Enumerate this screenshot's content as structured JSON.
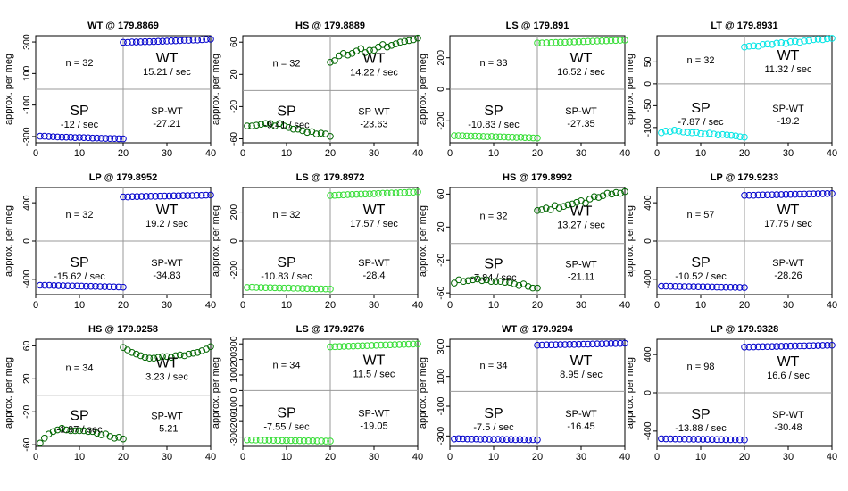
{
  "chart_data": {
    "type": "scatter",
    "layout": {
      "rows": 3,
      "cols": 4
    },
    "shared": {
      "ylabel": "approx. per meg",
      "xlim": [
        0,
        40
      ],
      "xticks": [
        0,
        10,
        20,
        30,
        40
      ],
      "label_sp": "SP",
      "label_wt": "WT",
      "label_spwt": "SP-WT",
      "per_sec": " / sec"
    },
    "panels": [
      {
        "title": "WT @ 179.8869",
        "color": "#0000cc",
        "ylim": [
          -340,
          340
        ],
        "yticks": [
          -300,
          -100,
          100,
          300
        ],
        "n_text": "n = 32",
        "wt_rate": "15.21 / sec",
        "sp_rate": "-12 / sec",
        "diff": "-27.21",
        "sp_points": [
          -298,
          -298,
          -300,
          -301,
          -303,
          -304,
          -304,
          -305,
          -307,
          -306,
          -307,
          -308,
          -310,
          -310,
          -311,
          -312,
          -313,
          -313,
          -314,
          -315
        ],
        "wt_points": [
          298,
          297,
          300,
          300,
          301,
          302,
          302,
          303,
          304,
          305,
          306,
          307,
          308,
          309,
          311,
          311,
          313,
          313,
          315,
          317,
          318
        ]
      },
      {
        "title": "HS @ 179.8889",
        "color": "#006600",
        "ylim": [
          -65,
          68
        ],
        "yticks": [
          -60,
          -20,
          20,
          60
        ],
        "n_text": "n = 32",
        "wt_rate": "14.22 / sec",
        "sp_rate": "-9.41 / sec",
        "diff": "-23.63",
        "sp_points": [
          -44,
          -44,
          -43,
          -42,
          -41,
          -41,
          -44,
          -41,
          -44,
          -46,
          -48,
          -48,
          -50,
          -52,
          -51,
          -54,
          -53,
          -54,
          -57
        ],
        "wt_points": [
          35,
          37,
          43,
          46,
          44,
          46,
          49,
          52,
          47,
          50,
          50,
          54,
          57,
          54,
          56,
          58,
          60,
          61,
          62,
          63,
          65
        ]
      },
      {
        "title": "LS @ 179.891",
        "color": "#33dd33",
        "ylim": [
          -340,
          340
        ],
        "yticks": [
          -200,
          0,
          200
        ],
        "n_text": "n = 33",
        "wt_rate": "16.52 / sec",
        "sp_rate": "-10.83 / sec",
        "diff": "-27.35",
        "sp_points": [
          -295,
          -295,
          -296,
          -297,
          -298,
          -298,
          -299,
          -300,
          -301,
          -300,
          -302,
          -302,
          -303,
          -304,
          -305,
          -306,
          -305,
          -307,
          -307,
          -309,
          -310
        ],
        "wt_points": [
          294,
          294,
          295,
          296,
          297,
          298,
          298,
          300,
          301,
          302,
          303,
          304,
          305,
          306,
          307,
          308,
          309,
          310,
          311,
          312
        ]
      },
      {
        "title": "LT @ 179.8931",
        "color": "#00e5e5",
        "ylim": [
          -135,
          110
        ],
        "yticks": [
          -100,
          -50,
          0,
          50
        ],
        "n_text": "n = 32",
        "wt_rate": "11.32 / sec",
        "sp_rate": "-7.87 / sec",
        "diff": "-19.2",
        "sp_points": [
          -112,
          -108,
          -109,
          -106,
          -108,
          -110,
          -111,
          -112,
          -111,
          -114,
          -115,
          -113,
          -115,
          -117,
          -116,
          -117,
          -118,
          -119,
          -121,
          -122
        ],
        "wt_points": [
          84,
          86,
          87,
          86,
          90,
          91,
          90,
          93,
          94,
          92,
          96,
          97,
          95,
          98,
          99,
          101,
          102,
          101,
          103,
          104
        ]
      },
      {
        "title": "LP @ 179.8952",
        "color": "#0000cc",
        "ylim": [
          -560,
          560
        ],
        "yticks": [
          -400,
          0,
          400
        ],
        "n_text": "n = 32",
        "wt_rate": "19.2 / sec",
        "sp_rate": "-15.62 / sec",
        "diff": "-34.83",
        "sp_points": [
          -462,
          -463,
          -463,
          -465,
          -466,
          -467,
          -468,
          -469,
          -470,
          -471,
          -473,
          -473,
          -474,
          -476,
          -477,
          -478,
          -479,
          -480,
          -482
        ],
        "wt_points": [
          462,
          461,
          465,
          465,
          466,
          467,
          468,
          468,
          470,
          471,
          471,
          473,
          473,
          475,
          476,
          476,
          478,
          478,
          480,
          481
        ]
      },
      {
        "title": "LS @ 179.8972",
        "color": "#33dd33",
        "ylim": [
          -370,
          370
        ],
        "yticks": [
          -200,
          0,
          200
        ],
        "n_text": "n = 32",
        "wt_rate": "17.57 / sec",
        "sp_rate": "-10.83 / sec",
        "diff": "-28.4",
        "sp_points": [
          -320,
          -319,
          -320,
          -321,
          -322,
          -322,
          -323,
          -324,
          -325,
          -324,
          -326,
          -326,
          -327,
          -328,
          -329,
          -330,
          -330,
          -331,
          -332
        ],
        "wt_points": [
          315,
          316,
          318,
          319,
          321,
          322,
          323,
          324,
          325,
          326,
          327,
          329,
          330,
          331,
          332,
          333,
          334,
          335,
          337,
          338,
          340
        ]
      },
      {
        "title": "HS @ 179.8992",
        "color": "#006600",
        "ylim": [
          -62,
          68
        ],
        "yticks": [
          -60,
          -20,
          20,
          60
        ],
        "n_text": "n = 32",
        "wt_rate": "13.27 / sec",
        "sp_rate": "-7.84 / sec",
        "diff": "-21.11",
        "sp_points": [
          -48,
          -44,
          -46,
          -45,
          -44,
          -43,
          -45,
          -44,
          -46,
          -46,
          -46,
          -47,
          -47,
          -49,
          -51,
          -49,
          -52,
          -54,
          -54
        ],
        "wt_points": [
          40,
          41,
          43,
          41,
          46,
          43,
          45,
          47,
          48,
          50,
          52,
          49,
          54,
          57,
          56,
          58,
          61,
          60,
          62,
          61,
          63
        ]
      },
      {
        "title": "LP @ 179.9233",
        "color": "#0000cc",
        "ylim": [
          -560,
          560
        ],
        "yticks": [
          -400,
          0,
          400
        ],
        "n_text": "n = 57",
        "wt_rate": "17.75 / sec",
        "sp_rate": "-10.52 / sec",
        "diff": "-28.26",
        "sp_points": [
          -472,
          -472,
          -473,
          -474,
          -475,
          -476,
          -476,
          -477,
          -478,
          -478,
          -479,
          -480,
          -481,
          -482,
          -482,
          -483,
          -484,
          -485,
          -486
        ],
        "wt_points": [
          478,
          479,
          479,
          481,
          482,
          483,
          484,
          485,
          486,
          487,
          488,
          489,
          490,
          491,
          492,
          493,
          494,
          495,
          496,
          497
        ]
      },
      {
        "title": "HS @ 179.9258",
        "color": "#006600",
        "ylim": [
          -62,
          68
        ],
        "yticks": [
          -60,
          -20,
          20,
          60
        ],
        "n_text": "n = 34",
        "wt_rate": "3.23 / sec",
        "sp_rate": "-1.97 / sec",
        "diff": "-5.21",
        "sp_points": [
          -58,
          -52,
          -47,
          -44,
          -42,
          -40,
          -42,
          -43,
          -43,
          -43,
          -43,
          -44,
          -44,
          -46,
          -48,
          -47,
          -50,
          -52,
          -51,
          -53
        ],
        "wt_points": [
          58,
          55,
          52,
          50,
          48,
          46,
          45,
          45,
          46,
          47,
          47,
          46,
          48,
          49,
          48,
          50,
          51,
          52,
          54,
          56,
          59
        ]
      },
      {
        "title": "LS @ 179.9276",
        "color": "#33dd33",
        "ylim": [
          -360,
          330
        ],
        "yticks": [
          -300,
          -200,
          -100,
          0,
          100,
          200,
          300
        ],
        "n_text": "n = 34",
        "wt_rate": "11.5 / sec",
        "sp_rate": "-7.55 / sec",
        "diff": "-19.05",
        "sp_points": [
          -318,
          -318,
          -319,
          -319,
          -320,
          -320,
          -321,
          -321,
          -322,
          -322,
          -322,
          -323,
          -323,
          -324,
          -324,
          -324,
          -325,
          -325,
          -326,
          -326
        ],
        "wt_points": [
          281,
          282,
          283,
          284,
          285,
          286,
          287,
          288,
          289,
          290,
          291,
          292,
          293,
          294,
          295,
          296,
          297,
          298,
          299,
          300
        ]
      },
      {
        "title": "WT @ 179.9294",
        "color": "#0000cc",
        "ylim": [
          -370,
          350
        ],
        "yticks": [
          -300,
          -100,
          100,
          300
        ],
        "n_text": "n = 34",
        "wt_rate": "8.95 / sec",
        "sp_rate": "-7.5 / sec",
        "diff": "-16.45",
        "sp_points": [
          -320,
          -318,
          -319,
          -320,
          -321,
          -320,
          -322,
          -321,
          -322,
          -323,
          -322,
          -323,
          -324,
          -323,
          -325,
          -324,
          -325,
          -326,
          -325,
          -326
        ],
        "wt_points": [
          310,
          311,
          312,
          312,
          313,
          314,
          314,
          315,
          315,
          316,
          317,
          317,
          318,
          319,
          319,
          320,
          321,
          321,
          322,
          323
        ]
      },
      {
        "title": "LP @ 179.9328",
        "color": "#0000cc",
        "ylim": [
          -560,
          560
        ],
        "yticks": [
          -400,
          0,
          400
        ],
        "n_text": "n = 98",
        "wt_rate": "16.6 / sec",
        "sp_rate": "-13.88 / sec",
        "diff": "-30.48",
        "sp_points": [
          -480,
          -481,
          -481,
          -482,
          -483,
          -483,
          -484,
          -485,
          -485,
          -486,
          -486,
          -487,
          -488,
          -488,
          -489,
          -490,
          -490,
          -491,
          -492
        ],
        "wt_points": [
          478,
          479,
          480,
          481,
          482,
          483,
          484,
          485,
          486,
          487,
          488,
          489,
          490,
          491,
          492,
          493,
          494,
          495,
          496,
          497
        ]
      }
    ]
  }
}
